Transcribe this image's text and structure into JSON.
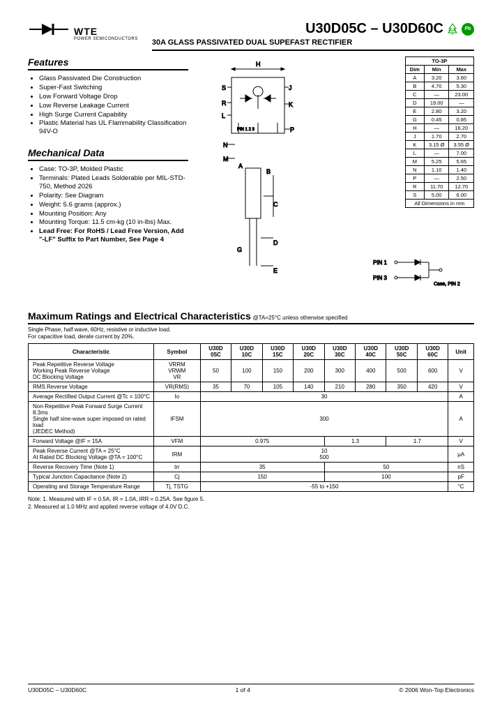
{
  "logo": {
    "brand": "WTE",
    "tagline": "POWER SEMICONDUCTORS"
  },
  "title": "U30D05C – U30D60C",
  "subtitle": "30A GLASS PASSIVATED DUAL SUPEFAST RECTIFIER",
  "badges": {
    "rohs": "RoHS",
    "pb": "Pb"
  },
  "features": {
    "heading": "Features",
    "items": [
      "Glass Passivated Die Construction",
      "Super-Fast Switching",
      "Low Forward Voltage Drop",
      "Low Reverse Leakage Current",
      "High Surge Current Capability",
      "Plastic Material has UL Flammability Classification 94V-O"
    ]
  },
  "mechanical": {
    "heading": "Mechanical Data",
    "items": [
      "Case: TO-3P, Molded Plastic",
      "Terminals: Plated Leads Solderable per MIL-STD-750, Method 2026",
      "Polarity: See Diagram",
      "Weight: 5.6 grams (approx.)",
      "Mounting Position: Any",
      "Mounting Torque: 11.5 cm-kg (10 in-lbs) Max.",
      "Lead Free: For RoHS / Lead Free Version, Add \"-LF\" Suffix to Part Number, See Page 4"
    ],
    "bold_last": true
  },
  "dimensions": {
    "header": [
      "Dim",
      "Min",
      "Max"
    ],
    "package_label": "TO-3P",
    "rows": [
      [
        "A",
        "3.20",
        "3.60"
      ],
      [
        "B",
        "4.70",
        "5.30"
      ],
      [
        "C",
        "—",
        "23.00"
      ],
      [
        "D",
        "19.00",
        "—"
      ],
      [
        "E",
        "2.80",
        "3.20"
      ],
      [
        "G",
        "0.45",
        "0.85"
      ],
      [
        "H",
        "—",
        "16.20"
      ],
      [
        "J",
        "1.70",
        "2.70"
      ],
      [
        "K",
        "3.15 Ø",
        "3.55 Ø"
      ],
      [
        "L",
        "—",
        "7.00"
      ],
      [
        "M",
        "5.25",
        "5.65"
      ],
      [
        "N",
        "1.10",
        "1.40"
      ],
      [
        "P",
        "—",
        "2.50"
      ],
      [
        "R",
        "11.70",
        "12.70"
      ],
      [
        "S",
        "5.00",
        "6.00"
      ]
    ],
    "caption": "All Dimensions in mm"
  },
  "pkg_labels": [
    "H",
    "S",
    "J",
    "R",
    "K",
    "L",
    "PIN 1",
    "2",
    "3",
    "P",
    "N",
    "M",
    "A",
    "B",
    "C",
    "G",
    "D",
    "E"
  ],
  "pin_diagram": {
    "pin1": "PIN 1",
    "pin3": "PIN 3",
    "case": "Case, PIN 2"
  },
  "ratings": {
    "heading": "Maximum Ratings and Electrical Characteristics",
    "condition": "@TA=25°C unless otherwise specified",
    "notes_top": "Single Phase, half wave, 60Hz, resistive or inductive load.\nFor capacitive load, derate current by 20%.",
    "columns": [
      "Characteristic",
      "Symbol",
      "U30D 05C",
      "U30D 10C",
      "U30D 15C",
      "U30D 20C",
      "U30D 30C",
      "U30D 40C",
      "U30D 50C",
      "U30D 60C",
      "Unit"
    ],
    "rows": [
      {
        "char": "Peak Repetitive Reverse Voltage\nWorking Peak Reverse Voltage\nDC Blocking Voltage",
        "symbol": "VRRM\nVRWM\nVR",
        "vals": [
          "50",
          "100",
          "150",
          "200",
          "300",
          "400",
          "500",
          "600"
        ],
        "unit": "V"
      },
      {
        "char": "RMS Reverse Voltage",
        "symbol": "VR(RMS)",
        "vals": [
          "35",
          "70",
          "105",
          "140",
          "210",
          "280",
          "350",
          "420"
        ],
        "unit": "V"
      },
      {
        "char": "Average Rectified Output Current     @Tc = 100°C",
        "symbol": "Io",
        "span": "30",
        "unit": "A"
      },
      {
        "char": "Non-Repetitive Peak Forward Surge Current 8.3ms\nSingle half sine-wave super imposed on rated load\n(JEDEC Method)",
        "symbol": "IFSM",
        "span": "300",
        "unit": "A"
      },
      {
        "char": "Forward Voltage                @IF = 15A",
        "symbol": "VFM",
        "groups": [
          [
            "0.975",
            4
          ],
          [
            "1.3",
            2
          ],
          [
            "1.7",
            2
          ]
        ],
        "unit": "V"
      },
      {
        "char": "Peak Reverse Current            @TA = 25°C\nAt Rated DC Blocking Voltage    @TA = 100°C",
        "symbol": "IRM",
        "stack": [
          "10",
          "500"
        ],
        "unit": "μA"
      },
      {
        "char": "Reverse Recovery Time (Note 1)",
        "symbol": "trr",
        "groups": [
          [
            "35",
            4
          ],
          [
            "50",
            4
          ]
        ],
        "unit": "nS"
      },
      {
        "char": "Typical Junction Capacitance (Note 2)",
        "symbol": "Cj",
        "groups": [
          [
            "150",
            4
          ],
          [
            "100",
            4
          ]
        ],
        "unit": "pF"
      },
      {
        "char": "Operating and Storage Temperature Range",
        "symbol": "Tj, TSTG",
        "span": "-55 to +150",
        "unit": "°C"
      }
    ],
    "footnotes": "Note:  1. Measured with IF = 0.5A, IR = 1.0A, IRR = 0.25A. See figure 5.\n          2. Measured at 1.0 MHz and applied reverse voltage of 4.0V D.C."
  },
  "footer": {
    "left": "U30D05C – U30D60C",
    "center": "1 of 4",
    "right": "© 2006 Won-Top Electronics"
  }
}
